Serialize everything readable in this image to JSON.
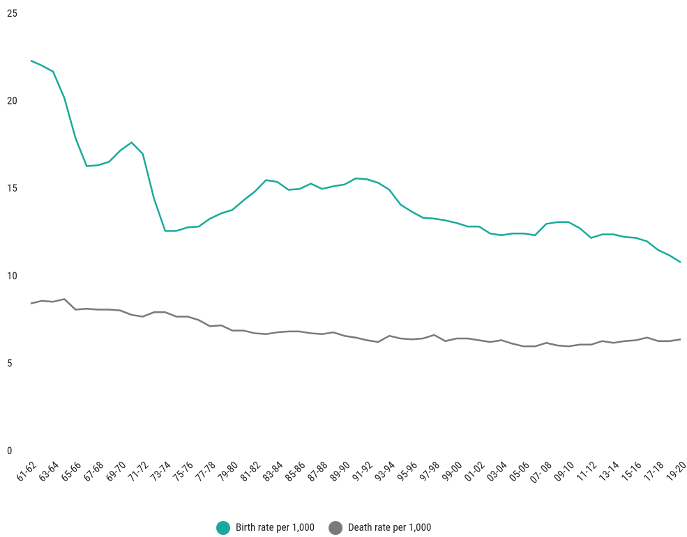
{
  "chart_data": {
    "type": "line",
    "categories": [
      "61-62",
      null,
      "63-64",
      null,
      "65-66",
      null,
      "67-68",
      null,
      "69-70",
      null,
      "71-72",
      null,
      "73-74",
      null,
      "75-76",
      null,
      "77-78",
      null,
      "79-80",
      null,
      "81-82",
      null,
      "83-84",
      null,
      "85-86",
      null,
      "87-88",
      null,
      "89-90",
      null,
      "91-92",
      null,
      "93-94",
      null,
      "95-96",
      null,
      "97-98",
      null,
      "99-00",
      null,
      "01-02",
      null,
      "03-04",
      null,
      "05-06",
      null,
      "07- 08",
      null,
      "09-10",
      null,
      "11-12",
      null,
      "13-14",
      null,
      "15-16",
      null,
      "17-18",
      null,
      "19-20"
    ],
    "series": [
      {
        "name": "Birth rate per 1,000",
        "color": "#1aaa9b",
        "values": [
          22.33,
          22.05,
          21.7,
          20.2,
          17.9,
          16.3,
          16.35,
          16.55,
          17.2,
          17.65,
          17.0,
          14.45,
          12.6,
          12.6,
          12.8,
          12.85,
          13.3,
          13.6,
          13.8,
          14.35,
          14.85,
          15.5,
          15.4,
          14.95,
          15.0,
          15.3,
          15.0,
          15.15,
          15.25,
          15.6,
          15.55,
          15.35,
          14.95,
          14.1,
          13.7,
          13.35,
          13.3,
          13.2,
          13.05,
          12.85,
          12.85,
          12.45,
          12.35,
          12.45,
          12.45,
          12.35,
          13.0,
          13.1,
          13.1,
          12.75,
          12.2,
          12.4,
          12.4,
          12.25,
          12.2,
          12.0,
          11.5,
          11.2,
          10.8
        ]
      },
      {
        "name": "Death rate per 1,000",
        "color": "#7a7a7a",
        "values": [
          8.45,
          8.6,
          8.55,
          8.7,
          8.1,
          8.15,
          8.1,
          8.1,
          8.05,
          7.8,
          7.7,
          7.95,
          7.95,
          7.7,
          7.7,
          7.5,
          7.15,
          7.2,
          6.9,
          6.9,
          6.75,
          6.7,
          6.8,
          6.85,
          6.85,
          6.75,
          6.7,
          6.8,
          6.6,
          6.5,
          6.35,
          6.25,
          6.6,
          6.45,
          6.4,
          6.45,
          6.65,
          6.3,
          6.45,
          6.45,
          6.35,
          6.25,
          6.35,
          6.15,
          6.0,
          6.0,
          6.2,
          6.05,
          6.0,
          6.1,
          6.1,
          6.3,
          6.2,
          6.3,
          6.35,
          6.5,
          6.3,
          6.3,
          6.4
        ]
      }
    ],
    "ylim": [
      0,
      25
    ],
    "yticks": [
      0,
      5,
      10,
      15,
      20,
      25
    ],
    "grid": false,
    "legend": "bottom"
  }
}
